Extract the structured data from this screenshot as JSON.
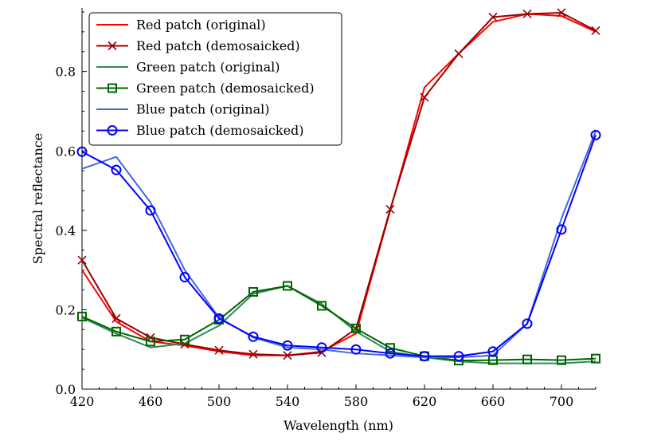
{
  "chart_data": {
    "type": "line",
    "title": "",
    "xlabel": "Wavelength (nm)",
    "ylabel": "Spectral reflectance",
    "xlim": [
      420,
      720
    ],
    "ylim": [
      0.0,
      0.96
    ],
    "xticks": [
      420,
      460,
      500,
      540,
      580,
      620,
      660,
      700
    ],
    "xtick_labels": [
      "420",
      "460",
      "500",
      "540",
      "580",
      "620",
      "660",
      "700"
    ],
    "yticks": [
      0.0,
      0.2,
      0.4,
      0.6,
      0.8
    ],
    "ytick_labels": [
      "0.0",
      "0.2",
      "0.4",
      "0.6",
      "0.8"
    ],
    "grid": false,
    "legend_position": "top-left",
    "x": [
      420,
      440,
      460,
      480,
      500,
      520,
      540,
      560,
      580,
      600,
      620,
      640,
      660,
      680,
      700,
      720
    ],
    "series": [
      {
        "name": "Red patch (original)",
        "color": "#ff0000",
        "marker": "none",
        "values": [
          0.3,
          0.17,
          0.12,
          0.11,
          0.095,
          0.085,
          0.085,
          0.095,
          0.14,
          0.45,
          0.76,
          0.845,
          0.925,
          0.945,
          0.94,
          0.9
        ]
      },
      {
        "name": "Red patch (demosaicked)",
        "color": "#990000",
        "marker": "x",
        "values": [
          0.325,
          0.178,
          0.13,
          0.113,
          0.098,
          0.088,
          0.085,
          0.092,
          0.152,
          0.453,
          0.735,
          0.845,
          0.937,
          0.945,
          0.948,
          0.903
        ]
      },
      {
        "name": "Green patch (original)",
        "color": "#2e8b57",
        "marker": "none",
        "values": [
          0.18,
          0.14,
          0.105,
          0.115,
          0.16,
          0.24,
          0.26,
          0.215,
          0.145,
          0.095,
          0.08,
          0.07,
          0.065,
          0.065,
          0.065,
          0.07
        ]
      },
      {
        "name": "Green patch (demosaicked)",
        "color": "#006400",
        "marker": "square",
        "values": [
          0.183,
          0.145,
          0.12,
          0.125,
          0.175,
          0.245,
          0.26,
          0.21,
          0.153,
          0.104,
          0.083,
          0.072,
          0.073,
          0.075,
          0.073,
          0.077
        ]
      },
      {
        "name": "Blue patch (original)",
        "color": "#4169e1",
        "marker": "none",
        "values": [
          0.555,
          0.585,
          0.47,
          0.3,
          0.18,
          0.13,
          0.105,
          0.1,
          0.09,
          0.085,
          0.08,
          0.08,
          0.085,
          0.165,
          0.43,
          0.65
        ]
      },
      {
        "name": "Blue patch (demosaicked)",
        "color": "#0000ff",
        "marker": "circle",
        "values": [
          0.598,
          0.552,
          0.45,
          0.282,
          0.178,
          0.132,
          0.11,
          0.105,
          0.1,
          0.09,
          0.083,
          0.083,
          0.095,
          0.165,
          0.402,
          0.64
        ]
      }
    ]
  }
}
